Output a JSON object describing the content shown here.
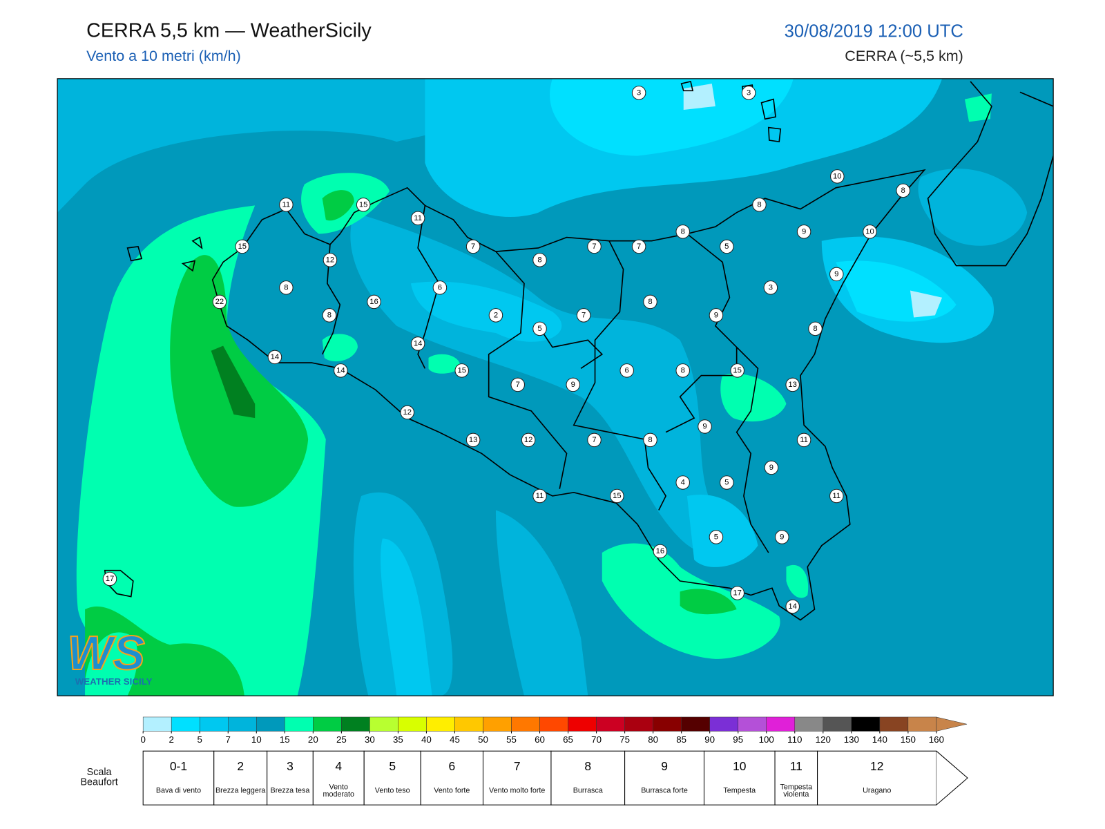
{
  "header": {
    "title": "CERRA 5,5 km — WeatherSicily",
    "subtitle": "Vento a 10 metri (km/h)",
    "datetime": "30/08/2019 12:00 UTC",
    "model": "CERRA (~5,5 km)"
  },
  "stations": [
    3,
    3,
    10,
    8,
    11,
    15,
    11,
    8,
    8,
    9,
    10,
    15,
    7,
    7,
    7,
    5,
    12,
    8,
    9,
    8,
    6,
    3,
    22,
    16,
    8,
    8,
    2,
    7,
    9,
    5,
    8,
    14,
    14,
    14,
    15,
    6,
    8,
    15,
    7,
    9,
    13,
    12,
    9,
    13,
    12,
    7,
    8,
    11,
    9,
    4,
    5,
    11,
    15,
    11,
    5,
    9,
    16,
    17,
    17,
    14
  ],
  "logo": {
    "mark": "WS",
    "text": "WEATHER SICILY"
  },
  "colorbar": {
    "levels": [
      0,
      2,
      5,
      7,
      10,
      15,
      20,
      25,
      30,
      35,
      40,
      45,
      50,
      55,
      60,
      65,
      70,
      75,
      80,
      85,
      90,
      95,
      100,
      110,
      120,
      130,
      140,
      150,
      160
    ],
    "colors": [
      "#b3f0ff",
      "#00e0ff",
      "#00c8f0",
      "#00b4dc",
      "#0099bb",
      "#00ffb0",
      "#00cc44",
      "#008020",
      "#b8ff30",
      "#d8ff00",
      "#ffee00",
      "#ffc800",
      "#ffa000",
      "#ff7800",
      "#ff4800",
      "#ee0000",
      "#cc0022",
      "#aa0010",
      "#880000",
      "#550000",
      "#7b2fd6",
      "#b450d8",
      "#e020d8",
      "#888888",
      "#555555",
      "#000000",
      "#884422",
      "#c8844a"
    ]
  },
  "beaufort": {
    "label": "Scala Beaufort",
    "scale": [
      {
        "force": "0-1",
        "name": "Bava di vento"
      },
      {
        "force": "2",
        "name": "Brezza leggera"
      },
      {
        "force": "3",
        "name": "Brezza tesa"
      },
      {
        "force": "4",
        "name": "Vento moderato"
      },
      {
        "force": "5",
        "name": "Vento teso"
      },
      {
        "force": "6",
        "name": "Vento forte"
      },
      {
        "force": "7",
        "name": "Vento molto forte"
      },
      {
        "force": "8",
        "name": "Burrasca"
      },
      {
        "force": "9",
        "name": "Burrasca forte"
      },
      {
        "force": "10",
        "name": "Tempesta"
      },
      {
        "force": "11",
        "name": "Tempesta violenta"
      },
      {
        "force": "12",
        "name": "Uragano"
      }
    ]
  }
}
